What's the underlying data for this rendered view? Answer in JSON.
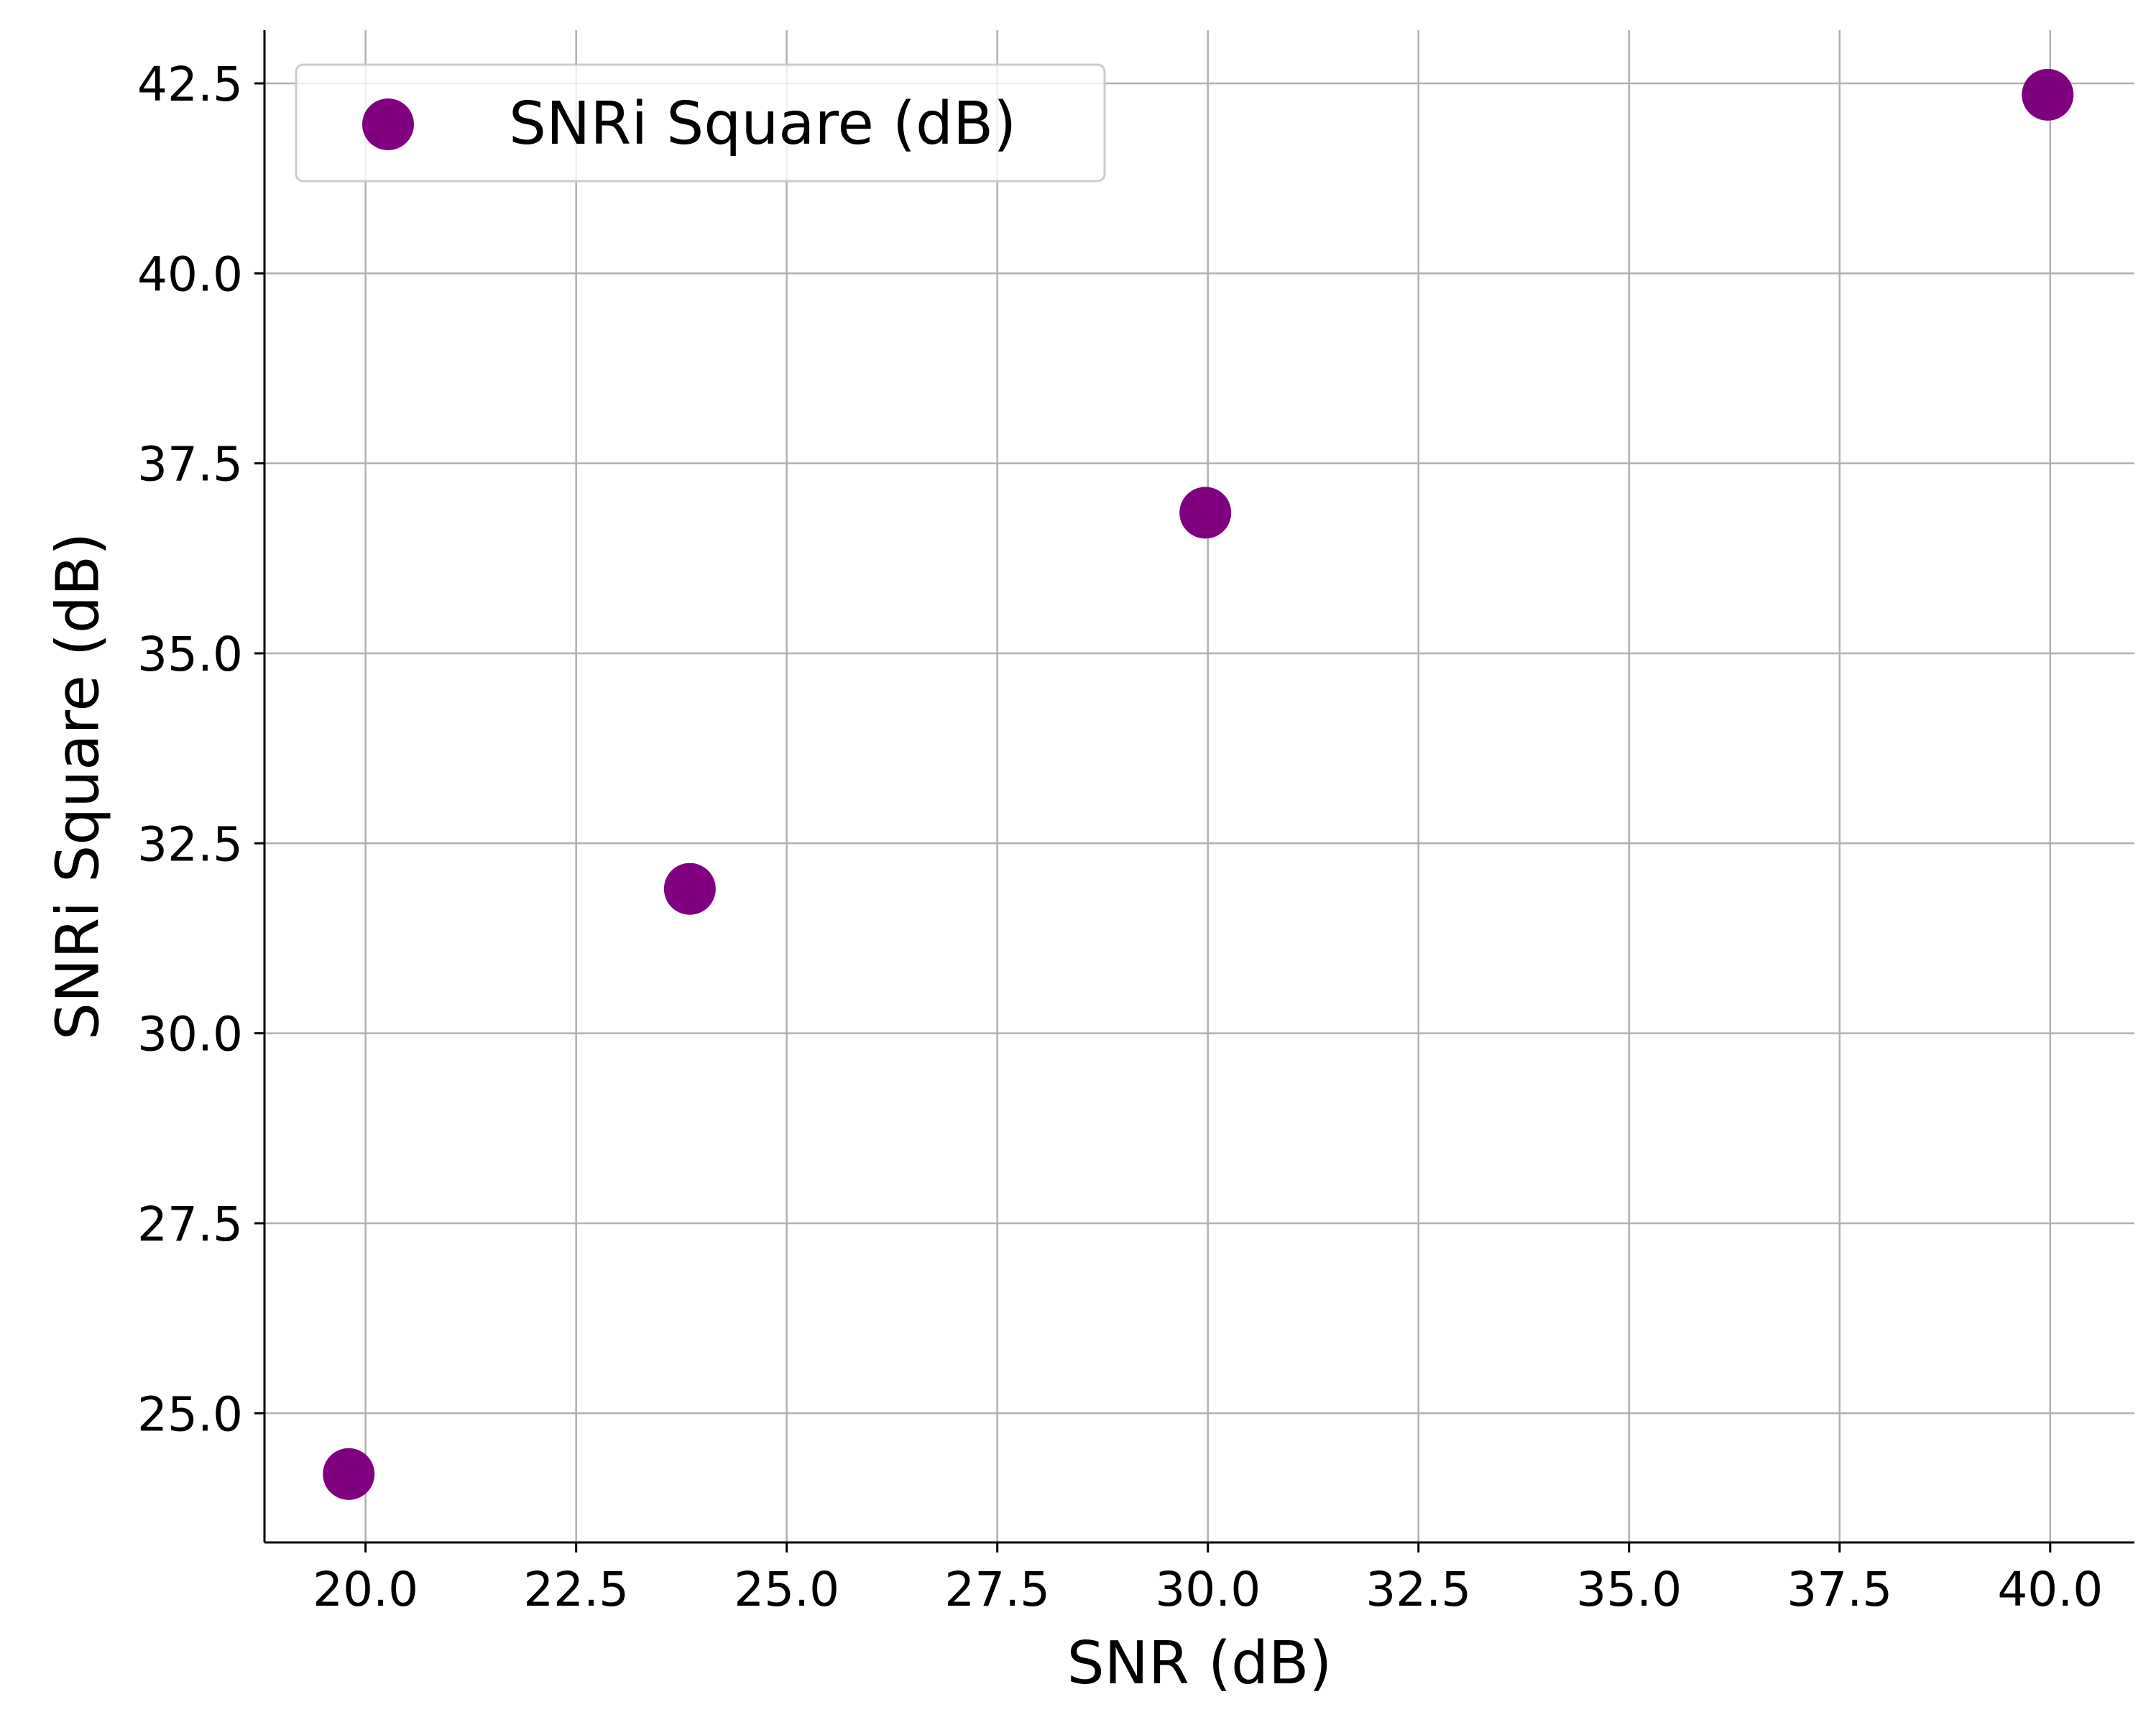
{
  "chart_data": {
    "type": "scatter",
    "title": "",
    "xlabel": "SNR (dB)",
    "ylabel": "SNRi Square (dB)",
    "xlim": [
      18.8,
      41.0
    ],
    "ylim": [
      23.3,
      43.2
    ],
    "x_ticks": [
      20.0,
      22.5,
      25.0,
      27.5,
      30.0,
      32.5,
      35.0,
      37.5,
      40.0
    ],
    "x_tick_labels": [
      "20.0",
      "22.5",
      "25.0",
      "27.5",
      "30.0",
      "32.5",
      "35.0",
      "37.5",
      "40.0"
    ],
    "y_ticks": [
      25.0,
      27.5,
      30.0,
      32.5,
      35.0,
      37.5,
      40.0,
      42.5
    ],
    "y_tick_labels": [
      "25.0",
      "27.5",
      "30.0",
      "32.5",
      "35.0",
      "37.5",
      "40.0",
      "42.5"
    ],
    "grid": true,
    "legend_position": "top-left",
    "series": [
      {
        "name": "SNRi Square (dB)",
        "color": "#800080",
        "marker": "circle",
        "points": [
          {
            "x": 19.8,
            "y": 24.2
          },
          {
            "x": 23.85,
            "y": 31.9
          },
          {
            "x": 29.97,
            "y": 36.85
          },
          {
            "x": 39.97,
            "y": 42.35
          }
        ]
      }
    ]
  }
}
